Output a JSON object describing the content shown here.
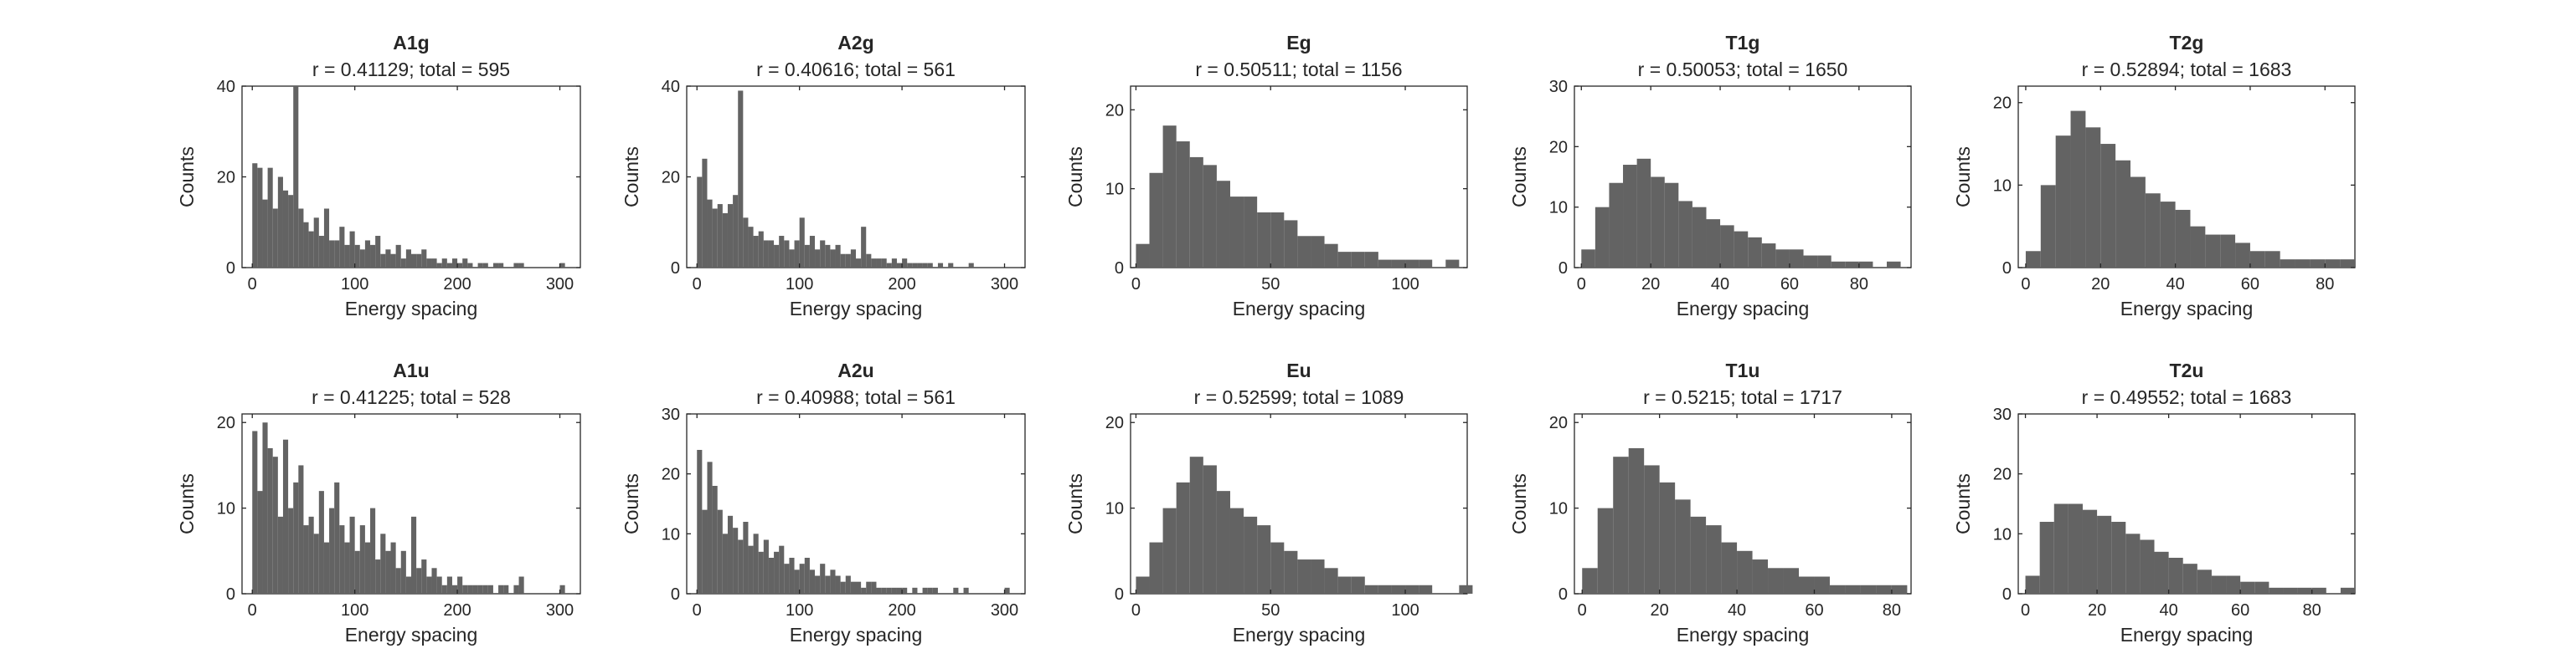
{
  "figure": {
    "background": "#ffffff",
    "bar_color": "#636363",
    "axis_color": "#262626"
  },
  "chart_data": [
    {
      "type": "bar",
      "title": "A1g",
      "subtitle": "r = 0.41129; total = 595",
      "xlabel": "Energy spacing",
      "ylabel": "Counts",
      "xlim": [
        -10,
        320
      ],
      "ylim": [
        0,
        40
      ],
      "xticks": [
        0,
        100,
        200,
        300
      ],
      "yticks": [
        0,
        20,
        40
      ],
      "grid": false,
      "x": [
        0,
        5,
        10,
        15,
        20,
        25,
        30,
        35,
        40,
        45,
        50,
        55,
        60,
        65,
        70,
        75,
        80,
        85,
        90,
        95,
        100,
        105,
        110,
        115,
        120,
        125,
        130,
        135,
        140,
        145,
        150,
        155,
        160,
        165,
        170,
        175,
        180,
        185,
        190,
        195,
        200,
        205,
        210,
        215,
        220,
        225,
        230,
        235,
        240,
        245,
        250,
        255,
        260,
        265,
        270,
        275,
        280,
        285,
        290,
        295,
        300
      ],
      "values": [
        23,
        22,
        15,
        22,
        13,
        20,
        17,
        16,
        41,
        13,
        10,
        8,
        11,
        7,
        13,
        6,
        6,
        9,
        5,
        8,
        5,
        4,
        6,
        5,
        7,
        3,
        4,
        3,
        5,
        2,
        4,
        3,
        3,
        4,
        2,
        2,
        1,
        2,
        1,
        2,
        1,
        2,
        1,
        0,
        1,
        1,
        0,
        1,
        1,
        0,
        0,
        1,
        1,
        0,
        0,
        0,
        0,
        0,
        0,
        0,
        1
      ]
    },
    {
      "type": "bar",
      "title": "A2g",
      "subtitle": "r = 0.40616; total = 561",
      "xlabel": "Energy spacing",
      "ylabel": "Counts",
      "xlim": [
        -10,
        320
      ],
      "ylim": [
        0,
        40
      ],
      "xticks": [
        0,
        100,
        200,
        300
      ],
      "yticks": [
        0,
        20,
        40
      ],
      "grid": false,
      "x": [
        0,
        5,
        10,
        15,
        20,
        25,
        30,
        35,
        40,
        45,
        50,
        55,
        60,
        65,
        70,
        75,
        80,
        85,
        90,
        95,
        100,
        105,
        110,
        115,
        120,
        125,
        130,
        135,
        140,
        145,
        150,
        155,
        160,
        165,
        170,
        175,
        180,
        185,
        190,
        195,
        200,
        205,
        210,
        215,
        220,
        225,
        230,
        235,
        240,
        245,
        250,
        255,
        260,
        265
      ],
      "values": [
        20,
        24,
        15,
        13,
        14,
        12,
        14,
        16,
        39,
        11,
        9,
        7,
        8,
        6,
        6,
        5,
        7,
        6,
        4,
        6,
        11,
        5,
        7,
        4,
        6,
        5,
        4,
        5,
        3,
        3,
        4,
        2,
        9,
        3,
        2,
        2,
        2,
        1,
        2,
        1,
        2,
        1,
        1,
        1,
        1,
        1,
        0,
        1,
        0,
        1,
        0,
        0,
        0,
        1
      ]
    },
    {
      "type": "bar",
      "title": "Eg",
      "subtitle": "r = 0.50511; total = 1156",
      "xlabel": "Energy spacing",
      "ylabel": "Counts",
      "xlim": [
        -2,
        123
      ],
      "ylim": [
        0,
        23
      ],
      "xticks": [
        0,
        50,
        100
      ],
      "yticks": [
        0,
        10,
        20
      ],
      "grid": false,
      "x": [
        0,
        5,
        10,
        15,
        20,
        25,
        30,
        35,
        40,
        45,
        50,
        55,
        60,
        65,
        70,
        75,
        80,
        85,
        90,
        95,
        100,
        105,
        110,
        115
      ],
      "values": [
        3,
        12,
        18,
        16,
        14,
        13,
        11,
        9,
        9,
        7,
        7,
        6,
        4,
        4,
        3,
        2,
        2,
        2,
        1,
        1,
        1,
        1,
        0,
        1
      ]
    },
    {
      "type": "bar",
      "title": "T1g",
      "subtitle": "r = 0.50053; total = 1650",
      "xlabel": "Energy spacing",
      "ylabel": "Counts",
      "xlim": [
        -2,
        95
      ],
      "ylim": [
        0,
        30
      ],
      "xticks": [
        0,
        20,
        40,
        60,
        80
      ],
      "yticks": [
        0,
        10,
        20,
        30
      ],
      "grid": false,
      "x": [
        0,
        4,
        8,
        12,
        16,
        20,
        24,
        28,
        32,
        36,
        40,
        44,
        48,
        52,
        56,
        60,
        64,
        68,
        72,
        76,
        80,
        84,
        88
      ],
      "values": [
        3,
        10,
        14,
        17,
        18,
        15,
        14,
        11,
        10,
        8,
        7,
        6,
        5,
        4,
        3,
        3,
        2,
        2,
        1,
        1,
        1,
        0,
        1
      ]
    },
    {
      "type": "bar",
      "title": "T2g",
      "subtitle": "r = 0.52894; total = 1683",
      "xlabel": "Energy spacing",
      "ylabel": "Counts",
      "xlim": [
        -2,
        88
      ],
      "ylim": [
        0,
        22
      ],
      "xticks": [
        0,
        20,
        40,
        60,
        80
      ],
      "yticks": [
        0,
        10,
        20
      ],
      "grid": false,
      "x": [
        0,
        4,
        8,
        12,
        16,
        20,
        24,
        28,
        32,
        36,
        40,
        44,
        48,
        52,
        56,
        60,
        64,
        68,
        72,
        76,
        80,
        84
      ],
      "values": [
        2,
        10,
        16,
        19,
        17,
        15,
        13,
        11,
        9,
        8,
        7,
        5,
        4,
        4,
        3,
        2,
        2,
        1,
        1,
        1,
        1,
        1
      ]
    },
    {
      "type": "bar",
      "title": "A1u",
      "subtitle": "r = 0.41225; total = 528",
      "xlabel": "Energy spacing",
      "ylabel": "Counts",
      "xlim": [
        -10,
        320
      ],
      "ylim": [
        0,
        21
      ],
      "xticks": [
        0,
        100,
        200,
        300
      ],
      "yticks": [
        0,
        10,
        20
      ],
      "grid": false,
      "x": [
        0,
        5,
        10,
        15,
        20,
        25,
        30,
        35,
        40,
        45,
        50,
        55,
        60,
        65,
        70,
        75,
        80,
        85,
        90,
        95,
        100,
        105,
        110,
        115,
        120,
        125,
        130,
        135,
        140,
        145,
        150,
        155,
        160,
        165,
        170,
        175,
        180,
        185,
        190,
        195,
        200,
        205,
        210,
        215,
        220,
        225,
        230,
        235,
        240,
        245,
        250,
        255,
        260,
        265,
        270,
        275,
        280,
        285,
        290,
        295,
        300
      ],
      "values": [
        19,
        12,
        20,
        17,
        16,
        9,
        18,
        10,
        13,
        15,
        8,
        9,
        7,
        12,
        6,
        10,
        13,
        8,
        6,
        9,
        5,
        8,
        6,
        10,
        4,
        7,
        5,
        6,
        3,
        5,
        2,
        9,
        3,
        4,
        2,
        3,
        2,
        1,
        2,
        1,
        2,
        1,
        1,
        1,
        1,
        1,
        1,
        0,
        1,
        1,
        0,
        1,
        2,
        0,
        0,
        0,
        0,
        0,
        0,
        0,
        1
      ]
    },
    {
      "type": "bar",
      "title": "A2u",
      "subtitle": "r = 0.40988; total = 561",
      "xlabel": "Energy spacing",
      "ylabel": "Counts",
      "xlim": [
        -10,
        320
      ],
      "ylim": [
        0,
        30
      ],
      "xticks": [
        0,
        100,
        200,
        300
      ],
      "yticks": [
        0,
        10,
        20,
        30
      ],
      "grid": false,
      "x": [
        0,
        5,
        10,
        15,
        20,
        25,
        30,
        35,
        40,
        45,
        50,
        55,
        60,
        65,
        70,
        75,
        80,
        85,
        90,
        95,
        100,
        105,
        110,
        115,
        120,
        125,
        130,
        135,
        140,
        145,
        150,
        155,
        160,
        165,
        170,
        175,
        180,
        185,
        190,
        195,
        200,
        205,
        210,
        215,
        220,
        225,
        230,
        235,
        240,
        245,
        250,
        255,
        260,
        265,
        270,
        275,
        280,
        285,
        290,
        295,
        300
      ],
      "values": [
        24,
        14,
        22,
        18,
        14,
        10,
        13,
        11,
        9,
        12,
        8,
        10,
        7,
        9,
        6,
        7,
        8,
        5,
        6,
        4,
        5,
        6,
        4,
        3,
        5,
        3,
        4,
        3,
        2,
        3,
        2,
        2,
        1,
        2,
        2,
        1,
        1,
        1,
        1,
        1,
        1,
        0,
        1,
        0,
        1,
        1,
        1,
        0,
        0,
        0,
        1,
        0,
        1,
        0,
        0,
        0,
        0,
        0,
        0,
        0,
        1
      ]
    },
    {
      "type": "bar",
      "title": "Eu",
      "subtitle": "r = 0.52599; total = 1089",
      "xlabel": "Energy spacing",
      "ylabel": "Counts",
      "xlim": [
        -2,
        123
      ],
      "ylim": [
        0,
        21
      ],
      "xticks": [
        0,
        50,
        100
      ],
      "yticks": [
        0,
        10,
        20
      ],
      "grid": false,
      "x": [
        0,
        5,
        10,
        15,
        20,
        25,
        30,
        35,
        40,
        45,
        50,
        55,
        60,
        65,
        70,
        75,
        80,
        85,
        90,
        95,
        100,
        105,
        110,
        115,
        120
      ],
      "values": [
        2,
        6,
        10,
        13,
        16,
        15,
        12,
        10,
        9,
        8,
        6,
        5,
        4,
        4,
        3,
        2,
        2,
        1,
        1,
        1,
        1,
        1,
        0,
        0,
        1
      ]
    },
    {
      "type": "bar",
      "title": "T1u",
      "subtitle": "r = 0.5215; total = 1717",
      "xlabel": "Energy spacing",
      "ylabel": "Counts",
      "xlim": [
        -2,
        85
      ],
      "ylim": [
        0,
        21
      ],
      "xticks": [
        0,
        20,
        40,
        60,
        80
      ],
      "yticks": [
        0,
        10,
        20
      ],
      "grid": false,
      "x": [
        0,
        4,
        8,
        12,
        16,
        20,
        24,
        28,
        32,
        36,
        40,
        44,
        48,
        52,
        56,
        60,
        64,
        68,
        72,
        76,
        80
      ],
      "values": [
        3,
        10,
        16,
        17,
        15,
        13,
        11,
        9,
        8,
        6,
        5,
        4,
        3,
        3,
        2,
        2,
        1,
        1,
        1,
        1,
        1
      ]
    },
    {
      "type": "bar",
      "title": "T2u",
      "subtitle": "r = 0.49552; total = 1683",
      "xlabel": "Energy spacing",
      "ylabel": "Counts",
      "xlim": [
        -2,
        92
      ],
      "ylim": [
        0,
        30
      ],
      "xticks": [
        0,
        20,
        40,
        60,
        80
      ],
      "yticks": [
        0,
        10,
        20,
        30
      ],
      "grid": false,
      "x": [
        0,
        4,
        8,
        12,
        16,
        20,
        24,
        28,
        32,
        36,
        40,
        44,
        48,
        52,
        56,
        60,
        64,
        68,
        72,
        76,
        80,
        84,
        88
      ],
      "values": [
        3,
        12,
        15,
        15,
        14,
        13,
        12,
        10,
        9,
        7,
        6,
        5,
        4,
        3,
        3,
        2,
        2,
        1,
        1,
        1,
        1,
        0,
        1
      ]
    }
  ]
}
